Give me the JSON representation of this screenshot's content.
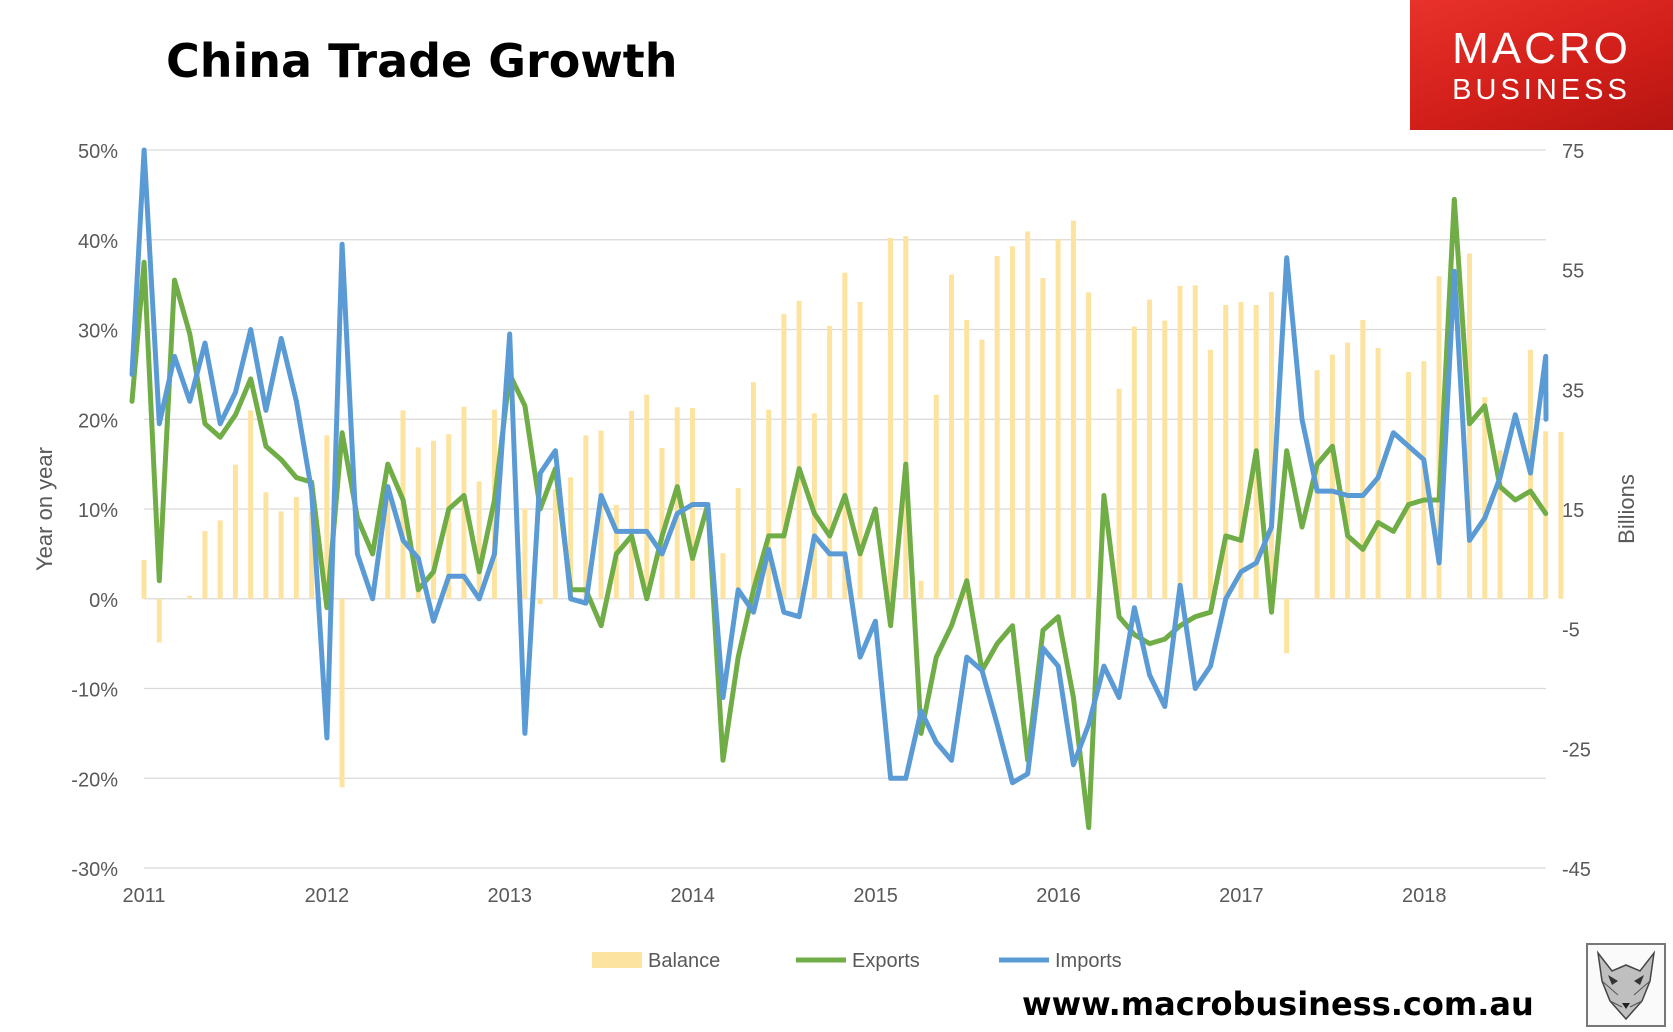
{
  "title": "China Trade Growth",
  "brand": {
    "line1": "MACRO",
    "line2": "BUSINESS"
  },
  "url": "www.macrobusiness.com.au",
  "chart_data": {
    "type": "bar+line",
    "title": "China Trade Growth",
    "ylabel_left": "Year on year",
    "ylabel_right": "Billions",
    "left_ticks": [
      "50%",
      "40%",
      "30%",
      "20%",
      "10%",
      "0%",
      "-10%",
      "-20%",
      "-30%"
    ],
    "right_ticks": [
      "75",
      "55",
      "35",
      "15",
      "-5",
      "-25",
      "-45"
    ],
    "x_labels": [
      "2011",
      "2012",
      "2013",
      "2014",
      "2015",
      "2016",
      "2017",
      "2018"
    ],
    "ylim_left": [
      -30,
      50
    ],
    "ylim_right": [
      -45,
      75
    ],
    "x_start": 2011.0,
    "x_step": 0.0833,
    "legend": {
      "position": "bottom",
      "items": [
        "Balance",
        "Exports",
        "Imports"
      ]
    },
    "colors": {
      "balance": "#fde3a0",
      "exports": "#70ad47",
      "imports": "#5b9bd5",
      "axis": "#d9d9d9",
      "text": "#595959"
    },
    "series": [
      {
        "name": "Balance",
        "axis": "right",
        "kind": "bar",
        "values": [
          6.5,
          -7.3,
          0,
          0.5,
          11.3,
          13.1,
          22.4,
          31.5,
          17.8,
          14.6,
          17.0,
          14.5,
          27.3,
          -31.5,
          0,
          0.4,
          18.7,
          31.5,
          25.3,
          26.4,
          27.5,
          32.1,
          19.6,
          31.6,
          0,
          15.1,
          -0.9,
          18.3,
          20.3,
          27.3,
          28.1,
          15.7,
          31.4,
          34.1,
          25.2,
          32.0,
          31.9,
          0,
          7.6,
          18.5,
          36.2,
          31.6,
          47.6,
          49.8,
          31.0,
          45.6,
          54.5,
          49.6,
          0,
          60.3,
          60.6,
          3.0,
          34.1,
          54.2,
          46.6,
          43.3,
          57.3,
          58.9,
          61.4,
          53.6,
          60.1,
          63.2,
          51.2,
          0,
          35.1,
          45.5,
          50.0,
          46.5,
          52.3,
          52.4,
          41.6,
          49.1,
          49.6,
          49.1,
          51.3,
          -9.1,
          0,
          38.2,
          40.8,
          42.8,
          46.6,
          41.9,
          0,
          37.9,
          39.7,
          53.9,
          0,
          57.7,
          33.7,
          24.8,
          0,
          41.6,
          28.0,
          27.9
        ],
        "x_start": 2011.0,
        "x_step": 0.0833
      },
      {
        "name": "Exports",
        "axis": "left",
        "kind": "line",
        "values": [
          22,
          37.5,
          2,
          35.5,
          29.5,
          19.5,
          18,
          20.5,
          24.5,
          17,
          15.5,
          13.5,
          13,
          -1,
          18.5,
          9,
          5,
          15,
          11,
          1,
          3,
          10,
          11.5,
          3,
          11,
          25,
          21.5,
          10,
          14.5,
          1,
          1,
          -3,
          5,
          7,
          0,
          7,
          12.5,
          4.5,
          10.5,
          -18,
          -6.5,
          1,
          7,
          7,
          14.5,
          9.5,
          7,
          11.5,
          5,
          10,
          -3,
          15,
          -15,
          -6.5,
          -3,
          2,
          -8,
          -5,
          -3,
          -18,
          -3.5,
          -2,
          -11,
          -25.5,
          11.5,
          -2,
          -4,
          -5,
          -4.5,
          -3,
          -2,
          -1.5,
          7,
          6.5,
          16.5,
          -1.5,
          16.5,
          8,
          15,
          17,
          7,
          5.5,
          8.5,
          7.5,
          10.5,
          11,
          11,
          44.5,
          19.5,
          21.5,
          12.5,
          11,
          12,
          9.5
        ],
        "x_start": 2010.917,
        "x_step": 0.0833
      },
      {
        "name": "Imports",
        "axis": "left",
        "kind": "line",
        "values": [
          25,
          51,
          19.5,
          27,
          22,
          28.5,
          19.5,
          23,
          30,
          21,
          29,
          22,
          12,
          -15.5,
          39.5,
          5,
          0,
          12.5,
          6.5,
          4.5,
          -2.5,
          2.5,
          2.5,
          0,
          5,
          29.5,
          -15,
          14,
          16.5,
          0,
          -0.5,
          11.5,
          7.5,
          7.5,
          7.5,
          5,
          9.5,
          10.5,
          10.5,
          -11,
          1,
          -1.5,
          5.5,
          -1.5,
          -2,
          7,
          5,
          5,
          -6.5,
          -2.5,
          -20,
          -20,
          -12.5,
          -16,
          -18,
          -6.5,
          -8,
          -14,
          -20.5,
          -19.5,
          -5.5,
          -7.5,
          -18.5,
          -14,
          -7.5,
          -11,
          -1,
          -8.5,
          -12,
          1.5,
          -10,
          -7.5,
          0,
          3,
          4,
          8,
          38,
          20,
          12,
          12,
          11.5,
          11.5,
          13.5,
          18.5,
          17,
          15.5,
          4,
          36.5,
          6.5,
          9,
          13.5,
          20.5,
          14,
          27,
          20
        ],
        "x_start": 2010.917,
        "x_step": 0.0833
      }
    ]
  }
}
